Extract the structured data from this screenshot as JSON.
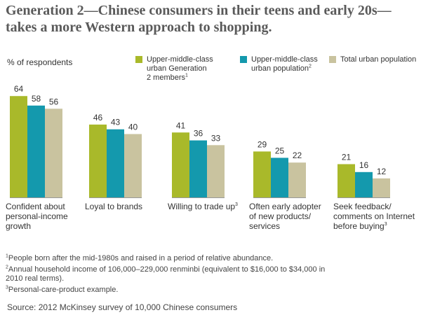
{
  "chart_data": {
    "type": "bar",
    "title": "Generation 2—Chinese consumers in their teens and early 20s—takes a more Western approach to shopping.",
    "ylabel": "% of respondents",
    "ylim": [
      0,
      70
    ],
    "categories": [
      {
        "lines": [
          "Confident about",
          "personal-income",
          "growth"
        ],
        "sup": ""
      },
      {
        "lines": [
          "Loyal to brands"
        ],
        "sup": ""
      },
      {
        "lines": [
          "Willing to trade up"
        ],
        "sup": "3"
      },
      {
        "lines": [
          "Often early adopter",
          "of new products/",
          "services"
        ],
        "sup": ""
      },
      {
        "lines": [
          "Seek feedback/",
          "comments on Internet",
          "before buying"
        ],
        "sup": "3"
      }
    ],
    "series": [
      {
        "name_lines": [
          "Upper-middle-class",
          "urban Generation",
          "2 members"
        ],
        "sup": "1",
        "color": "#a9b92a",
        "values": [
          64,
          46,
          41,
          29,
          21
        ]
      },
      {
        "name_lines": [
          "Upper-middle-class",
          "urban population"
        ],
        "sup": "2",
        "color": "#1499ad",
        "values": [
          58,
          43,
          36,
          25,
          16
        ]
      },
      {
        "name_lines": [
          "Total urban population"
        ],
        "sup": "",
        "color": "#c9c39f",
        "values": [
          56,
          40,
          33,
          22,
          12
        ]
      }
    ]
  },
  "footnotes": [
    {
      "mark": "1",
      "lines": [
        "People born after the mid-1980s and raised in a period of relative abundance."
      ]
    },
    {
      "mark": "2",
      "lines": [
        "Annual household income of 106,000–229,000 renminbi (equivalent to $16,000 to $34,000 in",
        "2010 real terms)."
      ]
    },
    {
      "mark": "3",
      "lines": [
        "Personal-care-product example."
      ]
    }
  ],
  "source": "Source: 2012 McKinsey survey of 10,000 Chinese consumers"
}
